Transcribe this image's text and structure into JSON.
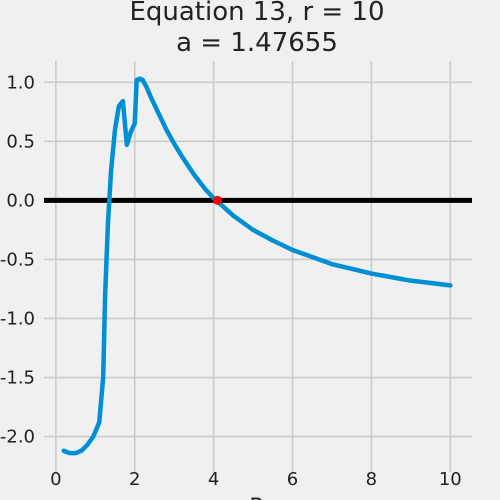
{
  "chart_data": {
    "type": "line",
    "title": [
      "Equation 13, r = 10",
      "a = 1.47655"
    ],
    "xlabel": "R",
    "ylabel": "",
    "xlim": [
      -0.3,
      10.55
    ],
    "ylim": [
      -2.3,
      1.18
    ],
    "xticks": [
      0,
      2,
      4,
      6,
      8,
      10
    ],
    "xtick_labels": [
      "0",
      "2",
      "4",
      "6",
      "8",
      "10"
    ],
    "yticks": [
      1.0,
      0.5,
      0.0,
      -0.5,
      -1.0,
      -1.5,
      -2.0
    ],
    "ytick_labels": [
      "1.0",
      "0.5",
      "0.0",
      "-0.5",
      "-1.0",
      "-1.5",
      "-2.0"
    ],
    "grid": true,
    "reference_line": {
      "y": 0.0,
      "color": "#000000"
    },
    "series": [
      {
        "color": "#008fd5",
        "x": [
          0.2,
          0.35,
          0.5,
          0.65,
          0.8,
          0.95,
          1.1,
          1.2,
          1.25,
          1.32,
          1.4,
          1.5,
          1.6,
          1.7,
          1.8,
          1.9,
          2.0,
          2.05,
          2.12,
          2.2,
          2.3,
          2.4,
          2.6,
          2.8,
          3.0,
          3.2,
          3.5,
          3.8,
          4.0,
          4.5,
          5.0,
          5.5,
          6.0,
          6.5,
          7.0,
          7.5,
          8.0,
          8.5,
          9.0,
          9.5,
          10.0
        ],
        "y": [
          -2.12,
          -2.14,
          -2.14,
          -2.12,
          -2.07,
          -2.0,
          -1.88,
          -1.5,
          -0.8,
          -0.2,
          0.25,
          0.6,
          0.8,
          0.84,
          0.47,
          0.58,
          0.65,
          1.02,
          1.03,
          1.02,
          0.96,
          0.88,
          0.74,
          0.6,
          0.48,
          0.37,
          0.22,
          0.09,
          0.02,
          -0.13,
          -0.25,
          -0.34,
          -0.42,
          -0.48,
          -0.54,
          -0.58,
          -0.62,
          -0.65,
          -0.68,
          -0.7,
          -0.72
        ]
      }
    ],
    "marker": {
      "x": 4.1,
      "y": 0.0,
      "color": "#fc0000"
    }
  }
}
